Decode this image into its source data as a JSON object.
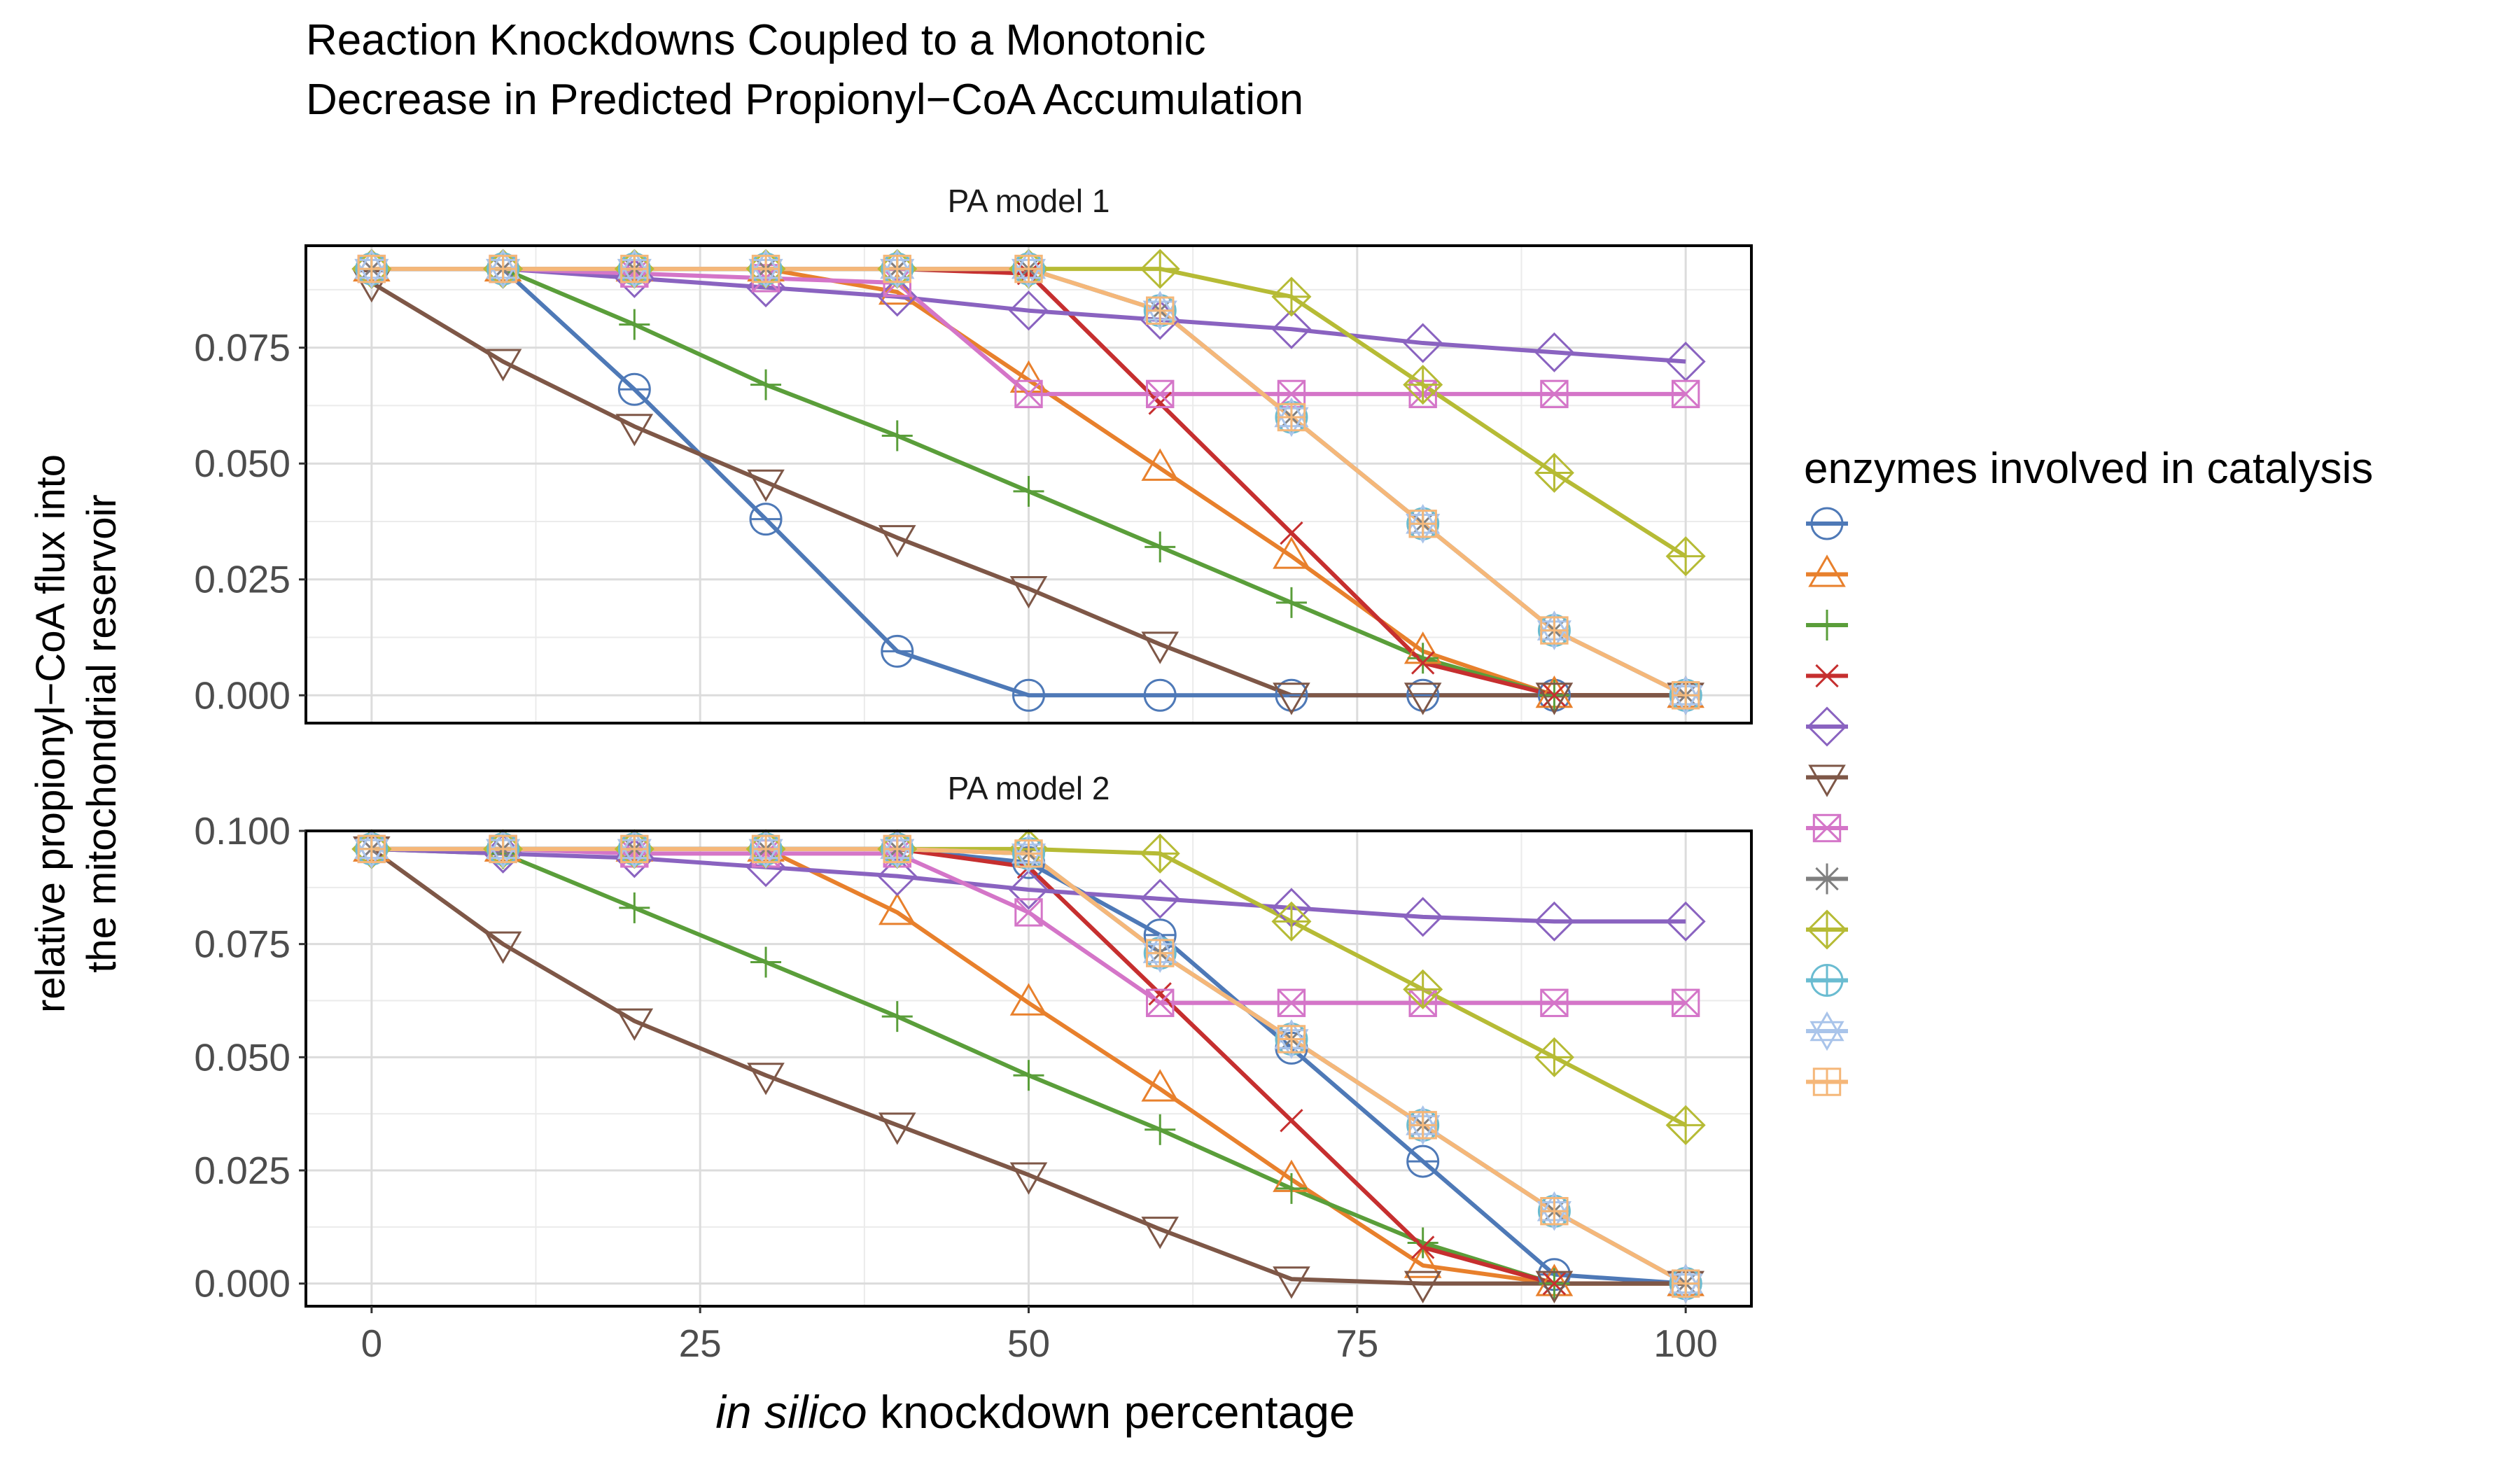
{
  "chart_data": {
    "type": "line",
    "title_lines": [
      "Reaction Knockdowns Coupled to a Monotonic",
      "Decrease in Predicted Propionyl−CoA Accumulation"
    ],
    "xlabel_italic": "in silico",
    "xlabel_rest": " knockdown percentage",
    "ylabel_lines": [
      "relative propionyl−CoA flux into",
      "the mitochondrial reservoir"
    ],
    "legend_title": "enzymes involved in catalysis",
    "x": [
      0,
      10,
      20,
      30,
      40,
      50,
      60,
      70,
      80,
      90,
      100
    ],
    "xlim": [
      -5,
      105
    ],
    "xticks": [
      0,
      25,
      50,
      75,
      100
    ],
    "xtick_labels": [
      "0",
      "25",
      "50",
      "75",
      "100"
    ],
    "grid": true,
    "legend_position": "right",
    "series_styles": [
      {
        "color": "#4e79b7",
        "shape": "circle-minus"
      },
      {
        "color": "#e8802c",
        "shape": "triangle-up"
      },
      {
        "color": "#5a9e3a",
        "shape": "plus"
      },
      {
        "color": "#c62f2f",
        "shape": "cross"
      },
      {
        "color": "#8a63c0",
        "shape": "diamond"
      },
      {
        "color": "#7e5747",
        "shape": "triangle-down"
      },
      {
        "color": "#d475c8",
        "shape": "square-cross"
      },
      {
        "color": "#7f7f7f",
        "shape": "asterisk"
      },
      {
        "color": "#b6bb35",
        "shape": "diamond-plus"
      },
      {
        "color": "#6abcd1",
        "shape": "circle-plus"
      },
      {
        "color": "#a9c4ea",
        "shape": "star-of-david"
      },
      {
        "color": "#f5b779",
        "shape": "square-plus"
      }
    ],
    "panels": [
      {
        "label": "PA model 1",
        "ylim": [
          -0.006,
          0.097
        ],
        "yticks": [
          0,
          0.025,
          0.05,
          0.075
        ],
        "ytick_labels": [
          "0.000",
          "0.025",
          "0.050",
          "0.075"
        ],
        "series": [
          {
            "values": [
              0.092,
              0.092,
              0.066,
              0.038,
              0.0095,
              0.0,
              0.0,
              0.0,
              0.0,
              0.0,
              0.0
            ]
          },
          {
            "values": [
              0.092,
              0.092,
              0.092,
              0.092,
              0.087,
              0.068,
              0.049,
              0.03,
              0.0095,
              0.0,
              0.0
            ]
          },
          {
            "values": [
              0.092,
              0.092,
              0.08,
              0.067,
              0.056,
              0.044,
              0.032,
              0.02,
              0.008,
              0.0,
              0.0
            ]
          },
          {
            "values": [
              0.092,
              0.092,
              0.092,
              0.092,
              0.092,
              0.091,
              0.063,
              0.035,
              0.007,
              0.0,
              0.0
            ]
          },
          {
            "values": [
              0.092,
              0.092,
              0.09,
              0.088,
              0.086,
              0.083,
              0.081,
              0.079,
              0.076,
              0.074,
              0.072
            ]
          },
          {
            "values": [
              0.089,
              0.072,
              0.058,
              0.046,
              0.034,
              0.023,
              0.011,
              0.0,
              0.0,
              0.0,
              0.0
            ]
          },
          {
            "values": [
              0.092,
              0.092,
              0.091,
              0.09,
              0.089,
              0.065,
              0.065,
              0.065,
              0.065,
              0.065,
              0.065
            ]
          },
          {
            "values": [
              0.092,
              0.092,
              0.092,
              0.092,
              0.092,
              0.092,
              0.083,
              0.06,
              0.037,
              0.014,
              0.0
            ]
          },
          {
            "values": [
              0.092,
              0.092,
              0.092,
              0.092,
              0.092,
              0.092,
              0.092,
              0.086,
              0.067,
              0.048,
              0.03
            ]
          },
          {
            "values": [
              0.092,
              0.092,
              0.092,
              0.092,
              0.092,
              0.092,
              0.083,
              0.06,
              0.037,
              0.014,
              0.0
            ]
          },
          {
            "values": [
              0.092,
              0.092,
              0.092,
              0.092,
              0.092,
              0.092,
              0.083,
              0.06,
              0.037,
              0.014,
              0.0
            ]
          },
          {
            "values": [
              0.092,
              0.092,
              0.092,
              0.092,
              0.092,
              0.092,
              0.083,
              0.06,
              0.037,
              0.014,
              0.0
            ]
          }
        ]
      },
      {
        "label": "PA model 2",
        "ylim": [
          -0.005,
          0.1
        ],
        "yticks": [
          0,
          0.025,
          0.05,
          0.075,
          0.1
        ],
        "ytick_labels": [
          "0.000",
          "0.025",
          "0.050",
          "0.075",
          "0.100"
        ],
        "series": [
          {
            "values": [
              0.096,
              0.096,
              0.096,
              0.096,
              0.096,
              0.093,
              0.077,
              0.052,
              0.027,
              0.002,
              0.0
            ]
          },
          {
            "values": [
              0.096,
              0.096,
              0.096,
              0.096,
              0.082,
              0.062,
              0.043,
              0.023,
              0.004,
              0.0,
              0.0
            ]
          },
          {
            "values": [
              0.096,
              0.095,
              0.083,
              0.071,
              0.059,
              0.046,
              0.034,
              0.021,
              0.009,
              0.0,
              0.0
            ]
          },
          {
            "values": [
              0.096,
              0.096,
              0.096,
              0.096,
              0.096,
              0.092,
              0.064,
              0.036,
              0.008,
              0.0,
              0.0
            ]
          },
          {
            "values": [
              0.096,
              0.095,
              0.094,
              0.092,
              0.09,
              0.087,
              0.085,
              0.083,
              0.081,
              0.08,
              0.08
            ]
          },
          {
            "values": [
              0.096,
              0.075,
              0.058,
              0.046,
              0.035,
              0.024,
              0.012,
              0.001,
              0.0,
              0.0,
              0.0
            ]
          },
          {
            "values": [
              0.096,
              0.096,
              0.095,
              0.095,
              0.095,
              0.082,
              0.062,
              0.062,
              0.062,
              0.062,
              0.062
            ]
          },
          {
            "values": [
              0.096,
              0.096,
              0.096,
              0.096,
              0.096,
              0.095,
              0.073,
              0.054,
              0.035,
              0.016,
              0.0
            ]
          },
          {
            "values": [
              0.096,
              0.096,
              0.096,
              0.096,
              0.096,
              0.096,
              0.095,
              0.08,
              0.065,
              0.05,
              0.035
            ]
          },
          {
            "values": [
              0.096,
              0.096,
              0.096,
              0.096,
              0.096,
              0.095,
              0.073,
              0.054,
              0.035,
              0.016,
              0.0
            ]
          },
          {
            "values": [
              0.096,
              0.096,
              0.096,
              0.096,
              0.096,
              0.095,
              0.073,
              0.054,
              0.035,
              0.016,
              0.0
            ]
          },
          {
            "values": [
              0.096,
              0.096,
              0.096,
              0.096,
              0.096,
              0.095,
              0.073,
              0.054,
              0.035,
              0.016,
              0.0
            ]
          }
        ]
      }
    ]
  }
}
